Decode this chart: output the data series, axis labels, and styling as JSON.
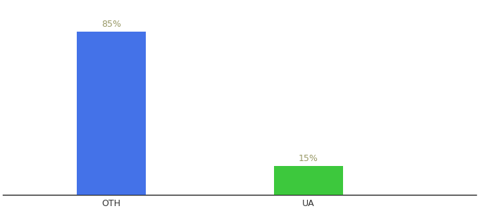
{
  "categories": [
    "OTH",
    "UA"
  ],
  "values": [
    85,
    15
  ],
  "bar_colors": [
    "#4472e8",
    "#3dc83d"
  ],
  "label_texts": [
    "85%",
    "15%"
  ],
  "label_color": "#999966",
  "ylim": [
    0,
    100
  ],
  "bar_width": 0.35,
  "background_color": "#ffffff",
  "label_fontsize": 9,
  "tick_fontsize": 9,
  "spine_color": "#222222"
}
